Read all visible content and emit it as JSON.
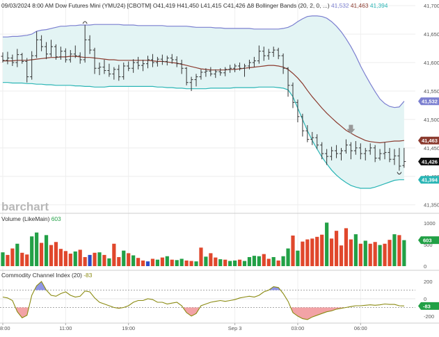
{
  "chart_data": [
    {
      "type": "ohlc",
      "header": {
        "datetime": "09/03/2024 8:00 AM",
        "instrument": "Dow Futures Mini (YMU24) [CBOTM]",
        "ohlc": "O41,419 H41,450 L41,415 C41,426",
        "change_symbol": "Δ",
        "change_value": "8",
        "study": "Bollinger Bands",
        "study_params": "(20, 2, 0, ...)",
        "study_values": [
          "41,532",
          "41,463",
          "41,394"
        ]
      },
      "watermark": "barchart",
      "y_ticks": [
        41350,
        41400,
        41450,
        41500,
        41550,
        41600,
        41650,
        41700
      ],
      "y_tick_labels": [
        "41,350",
        "41,400",
        "41,450",
        "41,500",
        "41,550",
        "41,600",
        "41,650",
        "41,700"
      ],
      "ylim": [
        41335,
        41710
      ],
      "x_tick_labels": [
        "8:00",
        "11:00",
        "19:00",
        "Sep 3",
        "03:00",
        "06:00"
      ],
      "x_tick_positions": [
        0,
        13,
        26,
        48,
        61,
        74
      ],
      "n_bars": 84,
      "price_badges": [
        {
          "label": "41,532",
          "value": 41532,
          "color": "#7b7fd0"
        },
        {
          "label": "41,463",
          "value": 41463,
          "color": "#8b3a2e"
        },
        {
          "label": "41,426",
          "value": 41426,
          "color": "#111111"
        },
        {
          "label": "41,394",
          "value": 41394,
          "color": "#2ab5b5"
        }
      ],
      "bars": [
        [
          41611,
          41618,
          41600,
          41604
        ],
        [
          41604,
          41619,
          41597,
          41608
        ],
        [
          41608,
          41614,
          41594,
          41600
        ],
        [
          41600,
          41624,
          41592,
          41614
        ],
        [
          41614,
          41617,
          41598,
          41602
        ],
        [
          41602,
          41608,
          41565,
          41575
        ],
        [
          41575,
          41620,
          41570,
          41612
        ],
        [
          41612,
          41655,
          41608,
          41640
        ],
        [
          41640,
          41648,
          41620,
          41628
        ],
        [
          41628,
          41636,
          41606,
          41615
        ],
        [
          41615,
          41640,
          41610,
          41628
        ],
        [
          41628,
          41632,
          41605,
          41610
        ],
        [
          41610,
          41628,
          41605,
          41620
        ],
        [
          41620,
          41625,
          41600,
          41605
        ],
        [
          41605,
          41622,
          41600,
          41615
        ],
        [
          41615,
          41630,
          41608,
          41612
        ],
        [
          41612,
          41618,
          41598,
          41605
        ],
        [
          41605,
          41666,
          41600,
          41640
        ],
        [
          41640,
          41648,
          41615,
          41622
        ],
        [
          41622,
          41626,
          41580,
          41590
        ],
        [
          41590,
          41600,
          41578,
          41592
        ],
        [
          41592,
          41605,
          41580,
          41586
        ],
        [
          41586,
          41598,
          41575,
          41580
        ],
        [
          41580,
          41592,
          41570,
          41588
        ],
        [
          41588,
          41596,
          41568,
          41575
        ],
        [
          41575,
          41600,
          41570,
          41594
        ],
        [
          41594,
          41602,
          41585,
          41590
        ],
        [
          41590,
          41606,
          41582,
          41600
        ],
        [
          41600,
          41610,
          41588,
          41595
        ],
        [
          41595,
          41605,
          41585,
          41598
        ],
        [
          41598,
          41612,
          41590,
          41605
        ],
        [
          41605,
          41615,
          41592,
          41600
        ],
        [
          41600,
          41610,
          41593,
          41606
        ],
        [
          41606,
          41614,
          41596,
          41602
        ],
        [
          41602,
          41612,
          41595,
          41608
        ],
        [
          41608,
          41615,
          41598,
          41605
        ],
        [
          41605,
          41611,
          41592,
          41598
        ],
        [
          41598,
          41605,
          41580,
          41590
        ],
        [
          41590,
          41592,
          41560,
          41565
        ],
        [
          41565,
          41575,
          41550,
          41570
        ],
        [
          41570,
          41580,
          41558,
          41575
        ],
        [
          41575,
          41588,
          41570,
          41583
        ],
        [
          41583,
          41590,
          41575,
          41585
        ],
        [
          41585,
          41592,
          41576,
          41580
        ],
        [
          41580,
          41588,
          41573,
          41584
        ],
        [
          41584,
          41590,
          41577,
          41582
        ],
        [
          41582,
          41592,
          41576,
          41588
        ],
        [
          41588,
          41596,
          41582,
          41590
        ],
        [
          41590,
          41598,
          41583,
          41594
        ],
        [
          41594,
          41600,
          41586,
          41590
        ],
        [
          41590,
          41598,
          41575,
          41594
        ],
        [
          41594,
          41605,
          41588,
          41600
        ],
        [
          41600,
          41610,
          41592,
          41603
        ],
        [
          41603,
          41630,
          41598,
          41620
        ],
        [
          41620,
          41628,
          41603,
          41612
        ],
        [
          41612,
          41624,
          41605,
          41618
        ],
        [
          41618,
          41628,
          41610,
          41622
        ],
        [
          41622,
          41626,
          41606,
          41612
        ],
        [
          41612,
          41616,
          41580,
          41590
        ],
        [
          41590,
          41592,
          41540,
          41560
        ],
        [
          41560,
          41565,
          41520,
          41530
        ],
        [
          41530,
          41535,
          41495,
          41505
        ],
        [
          41505,
          41510,
          41470,
          41480
        ],
        [
          41480,
          41490,
          41460,
          41465
        ],
        [
          41465,
          41478,
          41455,
          41468
        ],
        [
          41468,
          41474,
          41448,
          41455
        ],
        [
          41455,
          41460,
          41430,
          41440
        ],
        [
          41440,
          41448,
          41420,
          41435
        ],
        [
          41435,
          41452,
          41428,
          41445
        ],
        [
          41445,
          41455,
          41432,
          41440
        ],
        [
          41440,
          41450,
          41428,
          41445
        ],
        [
          41445,
          41465,
          41440,
          41455
        ],
        [
          41455,
          41460,
          41430,
          41445
        ],
        [
          41445,
          41462,
          41438,
          41450
        ],
        [
          41450,
          41458,
          41430,
          41440
        ],
        [
          41440,
          41450,
          41428,
          41445
        ],
        [
          41445,
          41458,
          41438,
          41450
        ],
        [
          41450,
          41455,
          41425,
          41432
        ],
        [
          41432,
          41448,
          41428,
          41440
        ],
        [
          41440,
          41460,
          41430,
          41442
        ],
        [
          41442,
          41450,
          41425,
          41430
        ],
        [
          41430,
          41448,
          41420,
          41436
        ],
        [
          41436,
          41450,
          41410,
          41418
        ],
        [
          41419,
          41450,
          41415,
          41426
        ]
      ],
      "bollinger": {
        "upper": [
          41645,
          41645,
          41646,
          41646,
          41647,
          41648,
          41650,
          41655,
          41657,
          41658,
          41660,
          41662,
          41664,
          41664,
          41665,
          41665,
          41666,
          41666,
          41666,
          41667,
          41667,
          41667,
          41667,
          41667,
          41667,
          41666,
          41666,
          41666,
          41665,
          41665,
          41665,
          41665,
          41665,
          41665,
          41664,
          41664,
          41664,
          41664,
          41664,
          41663,
          41662,
          41662,
          41662,
          41662,
          41661,
          41661,
          41660,
          41660,
          41660,
          41660,
          41660,
          41660,
          41659,
          41659,
          41659,
          41659,
          41659,
          41659,
          41660,
          41662,
          41666,
          41672,
          41677,
          41681,
          41682,
          41682,
          41681,
          41678,
          41672,
          41664,
          41654,
          41642,
          41628,
          41612,
          41594,
          41578,
          41563,
          41549,
          41536,
          41528,
          41523,
          41521,
          41522,
          41532
        ],
        "middle": [
          41603,
          41603,
          41603,
          41604,
          41604,
          41604,
          41605,
          41606,
          41607,
          41608,
          41609,
          41609,
          41610,
          41610,
          41611,
          41611,
          41610,
          41609,
          41609,
          41608,
          41607,
          41606,
          41605,
          41605,
          41604,
          41604,
          41604,
          41604,
          41604,
          41604,
          41604,
          41603,
          41602,
          41602,
          41601,
          41600,
          41599,
          41597,
          41595,
          41593,
          41591,
          41589,
          41588,
          41587,
          41587,
          41587,
          41587,
          41588,
          41588,
          41589,
          41590,
          41591,
          41592,
          41593,
          41594,
          41595,
          41595,
          41594,
          41592,
          41588,
          41581,
          41573,
          41563,
          41551,
          41540,
          41530,
          41520,
          41511,
          41503,
          41495,
          41488,
          41481,
          41476,
          41471,
          41467,
          41463,
          41461,
          41460,
          41459,
          41460,
          41461,
          41462,
          41462,
          41463
        ],
        "lower": [
          41565,
          41565,
          41564,
          41564,
          41564,
          41563,
          41563,
          41562,
          41562,
          41561,
          41561,
          41560,
          41560,
          41560,
          41560,
          41559,
          41559,
          41558,
          41558,
          41557,
          41557,
          41557,
          41558,
          41558,
          41558,
          41558,
          41558,
          41558,
          41558,
          41558,
          41558,
          41558,
          41557,
          41557,
          41556,
          41556,
          41555,
          41555,
          41554,
          41554,
          41554,
          41554,
          41554,
          41555,
          41555,
          41555,
          41555,
          41555,
          41556,
          41556,
          41556,
          41556,
          41556,
          41557,
          41557,
          41557,
          41557,
          41556,
          41555,
          41552,
          41540,
          41520,
          41500,
          41480,
          41463,
          41448,
          41434,
          41422,
          41411,
          41402,
          41395,
          41389,
          41384,
          41381,
          41379,
          41379,
          41379,
          41381,
          41384,
          41387,
          41390,
          41393,
          41394,
          41394
        ]
      },
      "annotations": [
        {
          "type": "swing-high-marker",
          "bar": 17
        },
        {
          "type": "down-arrow",
          "bar": 72,
          "value": 41482
        },
        {
          "type": "swing-low-marker",
          "bar": 82
        }
      ]
    },
    {
      "type": "bar",
      "header": {
        "study": "Volume",
        "params": "(LikeMain)",
        "value": "603"
      },
      "y_tick_labels": [
        "1000",
        "500",
        "0"
      ],
      "ylim": [
        0,
        1000
      ],
      "badge": {
        "label": "603",
        "value": 603,
        "color": "#22a046"
      },
      "values": [
        320,
        260,
        410,
        520,
        310,
        270,
        690,
        780,
        540,
        720,
        490,
        560,
        400,
        350,
        290,
        340,
        380,
        210,
        260,
        310,
        320,
        260,
        180,
        520,
        210,
        360,
        300,
        250,
        190,
        130,
        110,
        170,
        150,
        200,
        230,
        150,
        140,
        170,
        130,
        120,
        110,
        430,
        220,
        300,
        200,
        160,
        150,
        120,
        130,
        150,
        120,
        210,
        240,
        230,
        280,
        170,
        210,
        130,
        230,
        410,
        710,
        360,
        570,
        620,
        640,
        680,
        730,
        1010,
        640,
        820,
        480,
        880,
        620,
        740,
        520,
        590,
        520,
        560,
        490,
        520,
        610,
        740,
        720,
        603
      ],
      "colors": [
        "g",
        "r",
        "r",
        "g",
        "r",
        "r",
        "g",
        "g",
        "r",
        "g",
        "r",
        "r",
        "r",
        "r",
        "r",
        "g",
        "r",
        "r",
        "b",
        "r",
        "g",
        "r",
        "g",
        "r",
        "r",
        "g",
        "r",
        "g",
        "r",
        "r",
        "b",
        "r",
        "g",
        "r",
        "g",
        "r",
        "g",
        "g",
        "r",
        "r",
        "g",
        "r",
        "g",
        "r",
        "r",
        "g",
        "r",
        "g",
        "g",
        "r",
        "g",
        "g",
        "g",
        "g",
        "r",
        "r",
        "g",
        "r",
        "g",
        "g",
        "r",
        "g",
        "r",
        "r",
        "r",
        "r",
        "r",
        "g",
        "r",
        "r",
        "r",
        "r",
        "r",
        "g",
        "r",
        "g",
        "r",
        "r",
        "g",
        "r",
        "r",
        "g",
        "r",
        "g"
      ]
    },
    {
      "type": "line",
      "header": {
        "study": "Commodity Channel Index",
        "params": "(20)",
        "value": "-83"
      },
      "y_tick_labels": [
        "200",
        "0",
        "-200"
      ],
      "ylim": [
        -265,
        265
      ],
      "reference_lines": [
        100,
        -100
      ],
      "badge": {
        "label": "-83",
        "value": -83,
        "color": "#22a046"
      },
      "values": [
        20,
        10,
        -20,
        -150,
        -220,
        -190,
        40,
        150,
        200,
        100,
        40,
        30,
        60,
        80,
        40,
        20,
        30,
        90,
        80,
        10,
        -40,
        -60,
        -80,
        -100,
        -110,
        -100,
        -80,
        -40,
        -20,
        -20,
        0,
        -10,
        -40,
        -40,
        -60,
        -50,
        -40,
        -80,
        -160,
        -200,
        -170,
        -80,
        -60,
        -40,
        -30,
        -20,
        -30,
        -20,
        -10,
        10,
        20,
        30,
        20,
        40,
        80,
        100,
        140,
        130,
        60,
        -30,
        -160,
        -200,
        -230,
        -240,
        -210,
        -190,
        -170,
        -150,
        -140,
        -120,
        -110,
        -100,
        -90,
        -80,
        -80,
        -75,
        -70,
        -75,
        -70,
        -60,
        -65,
        -65,
        -80,
        -83
      ]
    }
  ]
}
